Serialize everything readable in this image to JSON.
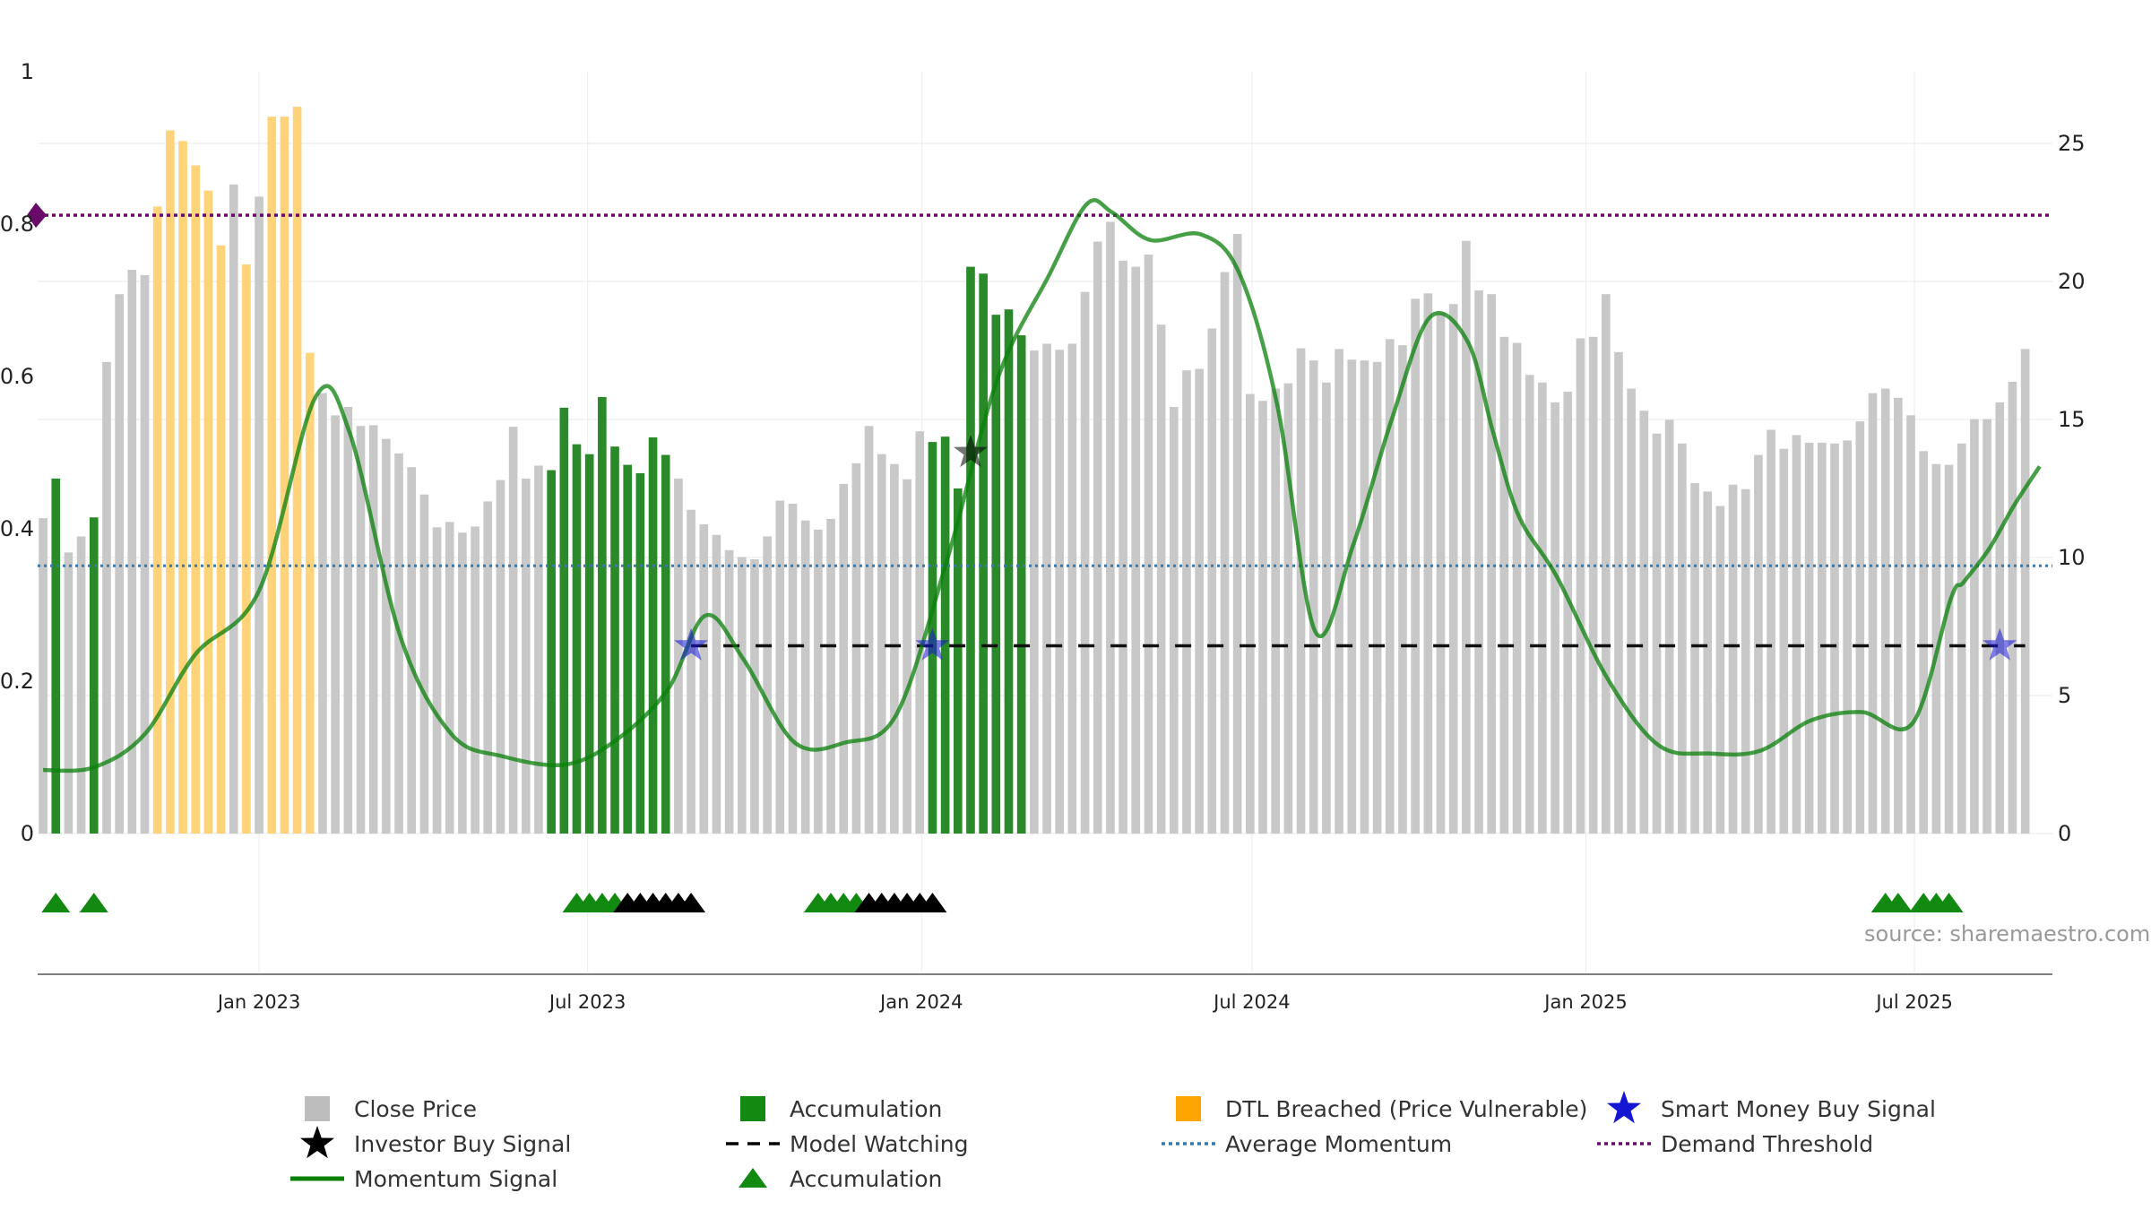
{
  "chart_data": {
    "type": "bar",
    "source_label": "source: sharemaestro.com",
    "left_axis": {
      "ylim": [
        0,
        1
      ],
      "ticks": [
        "0",
        "0.2",
        "0.4",
        "0.6",
        "0.8",
        "1"
      ]
    },
    "right_axis": {
      "ylim": [
        0,
        25
      ],
      "ticks": [
        "0",
        "5",
        "10",
        "15",
        "20",
        "25"
      ]
    },
    "x_axis": {
      "type": "date",
      "range": [
        "2022-09-01",
        "2025-09-15"
      ],
      "ticks": [
        {
          "date": "2023-01-01",
          "label": "Jan 2023"
        },
        {
          "date": "2023-07-01",
          "label": "Jul 2023"
        },
        {
          "date": "2024-01-01",
          "label": "Jan 2024"
        },
        {
          "date": "2024-07-01",
          "label": "Jul 2024"
        },
        {
          "date": "2025-01-01",
          "label": "Jan 2025"
        },
        {
          "date": "2025-07-01",
          "label": "Jul 2025"
        }
      ]
    },
    "colors": {
      "close_price": "#c8c8c8",
      "accumulation": "#2a8a2a",
      "dtl_breached": "#ffd37a",
      "momentum": "#0a800a",
      "average_momentum": "#3c78a8",
      "demand_threshold": "#6a0a6a",
      "smart_money": "#1515d4",
      "investor": "#000000"
    },
    "bar_start_date": "2022-09-04",
    "bar_interval_days": 7,
    "bar_states": "GAGGAGGGGDDDDDDGDGDDDDGGGGGGGGGGGGGGGGGGAAAAAAAAAAGGGGGGGGGGGGGGGGGGGGAAAAAAAAGGGGGGGGGGGGGGGGGGGGGGGGGGGGGGGGGGGGGGGGGGGGGGGGGGGGGGGGGGGGGGGGGGGGGGGGGGGGGGGGGGGGGGGGGGGGGGAAAAAGGGGGGG",
    "close_price": [
      0.414,
      0.466,
      0.369,
      0.39,
      0.415,
      0.619,
      0.708,
      0.74,
      0.733,
      0.823,
      0.923,
      0.909,
      0.877,
      0.844,
      0.772,
      0.852,
      0.747,
      0.836,
      0.941,
      0.941,
      0.954,
      0.631,
      0.578,
      0.549,
      0.56,
      0.535,
      0.536,
      0.518,
      0.499,
      0.481,
      0.445,
      0.402,
      0.409,
      0.395,
      0.403,
      0.436,
      0.464,
      0.534,
      0.466,
      0.483,
      0.477,
      0.559,
      0.511,
      0.498,
      0.573,
      0.508,
      0.484,
      0.473,
      0.52,
      0.497,
      0.466,
      0.425,
      0.406,
      0.392,
      0.372,
      0.363,
      0.36,
      0.39,
      0.437,
      0.433,
      0.411,
      0.399,
      0.413,
      0.459,
      0.486,
      0.535,
      0.498,
      0.485,
      0.465,
      0.528,
      0.514,
      0.521,
      0.453,
      0.744,
      0.735,
      0.681,
      0.688,
      0.654,
      0.634,
      0.643,
      0.635,
      0.643,
      0.711,
      0.777,
      0.803,
      0.752,
      0.744,
      0.76,
      0.668,
      0.56,
      0.608,
      0.61,
      0.663,
      0.737,
      0.787,
      0.577,
      0.568,
      0.584,
      0.591,
      0.637,
      0.621,
      0.592,
      0.636,
      0.622,
      0.621,
      0.619,
      0.649,
      0.641,
      0.702,
      0.709,
      0.683,
      0.695,
      0.778,
      0.713,
      0.708,
      0.652,
      0.644,
      0.602,
      0.592,
      0.566,
      0.58,
      0.65,
      0.652,
      0.708,
      0.632,
      0.584,
      0.555,
      0.525,
      0.543,
      0.512,
      0.46,
      0.449,
      0.43,
      0.458,
      0.452,
      0.497,
      0.53,
      0.505,
      0.523,
      0.513,
      0.513,
      0.512,
      0.516,
      0.541,
      0.578,
      0.584,
      0.572,
      0.549,
      0.502,
      0.485,
      0.484,
      0.512,
      0.544,
      0.544,
      0.566,
      0.593,
      0.636
    ],
    "momentum": {
      "axis": "right",
      "x": [
        "2022-09-04",
        "2022-10-02",
        "2022-10-30",
        "2022-11-27",
        "2023-01-01",
        "2023-02-01",
        "2023-02-20",
        "2023-03-20",
        "2023-04-17",
        "2023-05-15",
        "2023-06-19",
        "2023-07-17",
        "2023-08-14",
        "2023-09-04",
        "2023-09-25",
        "2023-10-23",
        "2023-11-20",
        "2023-12-18",
        "2024-01-15",
        "2024-02-12",
        "2024-03-11",
        "2024-04-01",
        "2024-04-15",
        "2024-05-06",
        "2024-06-03",
        "2024-06-24",
        "2024-07-15",
        "2024-08-05",
        "2024-08-26",
        "2024-09-16",
        "2024-10-07",
        "2024-10-28",
        "2024-11-11",
        "2024-11-25",
        "2024-12-16",
        "2025-01-13",
        "2025-02-10",
        "2025-03-10",
        "2025-04-07",
        "2025-05-05",
        "2025-06-02",
        "2025-06-30",
        "2025-07-21",
        "2025-07-28",
        "2025-08-11",
        "2025-08-25",
        "2025-09-08"
      ],
      "values": [
        2.3,
        2.4,
        3.6,
        6.5,
        8.8,
        15.8,
        14.5,
        7.1,
        3.6,
        2.8,
        2.5,
        3.4,
        5.2,
        7.9,
        6.3,
        3.3,
        3.3,
        4.3,
        9.9,
        16.5,
        20.2,
        22.8,
        22.5,
        21.5,
        21.7,
        20.3,
        15.5,
        7.3,
        10.5,
        15.0,
        18.7,
        17.8,
        14.5,
        11.5,
        9.3,
        5.6,
        3.2,
        2.9,
        3.0,
        4.1,
        4.4,
        4.0,
        8.5,
        9.1,
        10.3,
        11.9,
        13.3
      ]
    },
    "average_momentum": {
      "axis": "right",
      "value": 9.7
    },
    "demand_threshold": {
      "axis": "right",
      "value": 22.4
    },
    "model_watching": {
      "axis": "right",
      "value": 6.8,
      "x_start": "2023-08-27",
      "x_end": "2025-08-31"
    },
    "smart_money_signals": [
      {
        "date": "2023-08-27",
        "value": 6.8
      },
      {
        "date": "2024-01-07",
        "value": 6.8
      },
      {
        "date": "2025-08-17",
        "value": 6.8
      }
    ],
    "investor_signals": [
      {
        "date": "2024-01-28",
        "value": 13.8
      }
    ],
    "triangle_markers": [
      {
        "date": "2022-09-11",
        "color": "green"
      },
      {
        "date": "2022-10-02",
        "color": "green"
      },
      {
        "date": "2023-06-25",
        "color": "green"
      },
      {
        "date": "2023-07-02",
        "color": "green"
      },
      {
        "date": "2023-07-09",
        "color": "green"
      },
      {
        "date": "2023-07-16",
        "color": "green"
      },
      {
        "date": "2023-07-23",
        "color": "black"
      },
      {
        "date": "2023-07-30",
        "color": "black"
      },
      {
        "date": "2023-08-06",
        "color": "black"
      },
      {
        "date": "2023-08-13",
        "color": "black"
      },
      {
        "date": "2023-08-20",
        "color": "black"
      },
      {
        "date": "2023-08-27",
        "color": "black"
      },
      {
        "date": "2023-11-05",
        "color": "green"
      },
      {
        "date": "2023-11-12",
        "color": "green"
      },
      {
        "date": "2023-11-19",
        "color": "green"
      },
      {
        "date": "2023-11-26",
        "color": "green"
      },
      {
        "date": "2023-12-03",
        "color": "black"
      },
      {
        "date": "2023-12-10",
        "color": "black"
      },
      {
        "date": "2023-12-17",
        "color": "black"
      },
      {
        "date": "2023-12-24",
        "color": "black"
      },
      {
        "date": "2023-12-31",
        "color": "black"
      },
      {
        "date": "2024-01-07",
        "color": "black"
      },
      {
        "date": "2025-06-15",
        "color": "green"
      },
      {
        "date": "2025-06-22",
        "color": "green"
      },
      {
        "date": "2025-07-06",
        "color": "green"
      },
      {
        "date": "2025-07-13",
        "color": "green"
      },
      {
        "date": "2025-07-20",
        "color": "green"
      }
    ],
    "legend": [
      {
        "label": "Close Price",
        "symbol": "square-grey"
      },
      {
        "label": "Accumulation",
        "symbol": "square-green"
      },
      {
        "label": "DTL Breached (Price Vulnerable)",
        "symbol": "square-orange"
      },
      {
        "label": "Smart Money Buy Signal",
        "symbol": "star-blue"
      },
      {
        "label": "Investor Buy Signal",
        "symbol": "star-black"
      },
      {
        "label": "Model Watching",
        "symbol": "dash-black"
      },
      {
        "label": "Average Momentum",
        "symbol": "dot-blue"
      },
      {
        "label": "Demand Threshold",
        "symbol": "dot-purple"
      },
      {
        "label": "Momentum Signal",
        "symbol": "line-green"
      },
      {
        "label": "Accumulation",
        "symbol": "triangle-green"
      }
    ]
  }
}
